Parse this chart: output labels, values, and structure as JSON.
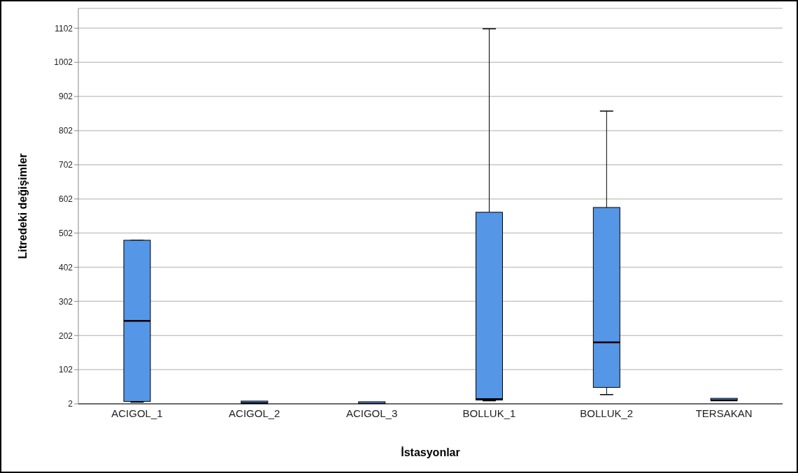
{
  "chart_data": {
    "type": "box",
    "xlabel": "İstasyonlar",
    "ylabel": "Litredeki değişimler",
    "categories": [
      "ACIGOL_1",
      "ACIGOL_2",
      "ACIGOL_3",
      "BOLLUK_1",
      "BOLLUK_2",
      "TERSAKAN"
    ],
    "boxes": [
      {
        "low": 7,
        "q1": 9,
        "median": 245,
        "q3": 481,
        "high": 481
      },
      {
        "low": 4,
        "q1": 4,
        "median": 4,
        "q3": 4,
        "high": 4
      },
      {
        "low": 2,
        "q1": 2,
        "median": 2,
        "q3": 2,
        "high": 2
      },
      {
        "low": 11,
        "q1": 13,
        "median": 16,
        "q3": 563,
        "high": 1100
      },
      {
        "low": 29,
        "q1": 50,
        "median": 182,
        "q3": 577,
        "high": 859
      },
      {
        "low": 12,
        "q1": 12,
        "median": 12,
        "q3": 12,
        "high": 12
      }
    ],
    "color": "#5596e6",
    "ylim": [
      2,
      1160
    ],
    "yticks": [
      2,
      102,
      202,
      302,
      402,
      502,
      602,
      702,
      802,
      902,
      1002,
      1102
    ],
    "grid": "y"
  }
}
